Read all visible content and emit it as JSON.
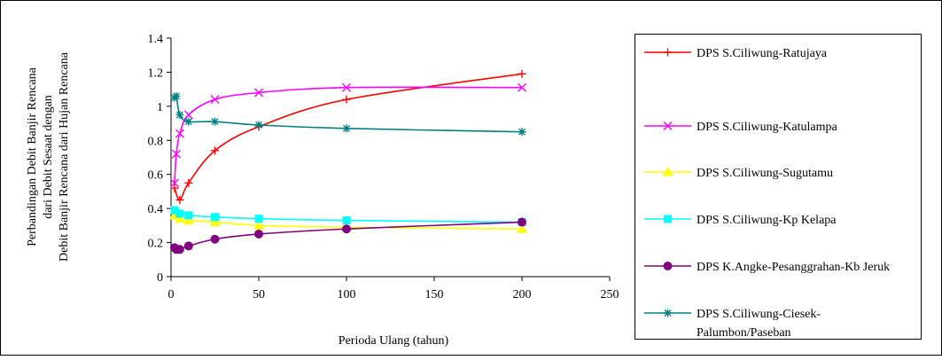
{
  "chart_data": {
    "type": "line",
    "xlabel": "Perioda Ulang (tahun)",
    "ylabel_lines": [
      "Perbandingan Debit Banjir Rencana",
      "dari Debit Sesaat dengan",
      "Debit Banjir Rencana dari Hujan Rencana"
    ],
    "xlim": [
      0,
      250
    ],
    "ylim": [
      0,
      1.4
    ],
    "xticks": [
      "0",
      "50",
      "100",
      "150",
      "200",
      "250"
    ],
    "yticks": [
      "0",
      "0.2",
      "0.4",
      "0.6",
      "0.8",
      "1",
      "1.2",
      "1.4"
    ],
    "grid": false,
    "legend_position": "right",
    "series": [
      {
        "name": "DPS S.Ciliwung-Ratujaya",
        "color": "#ff0000",
        "marker": "plus",
        "x": [
          2,
          5,
          10,
          25,
          50,
          100,
          200
        ],
        "y": [
          0.52,
          0.45,
          0.55,
          0.74,
          0.88,
          1.04,
          1.19
        ]
      },
      {
        "name": "DPS S.Ciliwung-Katulampa",
        "color": "#ff00ff",
        "marker": "x",
        "x": [
          2,
          3,
          5,
          10,
          25,
          50,
          100,
          200
        ],
        "y": [
          0.55,
          0.72,
          0.84,
          0.95,
          1.04,
          1.08,
          1.11,
          1.11
        ]
      },
      {
        "name": "DPS S.Ciliwung-Sugutamu",
        "color": "#ffff00",
        "marker": "triangle",
        "x": [
          2,
          5,
          10,
          25,
          50,
          100,
          200
        ],
        "y": [
          0.36,
          0.34,
          0.33,
          0.32,
          0.3,
          0.29,
          0.28
        ]
      },
      {
        "name": "DPS S.Ciliwung-Kp Kelapa",
        "color": "#00ffff",
        "marker": "square",
        "x": [
          2,
          5,
          10,
          25,
          50,
          100,
          200
        ],
        "y": [
          0.39,
          0.37,
          0.36,
          0.35,
          0.34,
          0.33,
          0.32
        ]
      },
      {
        "name": "DPS K.Angke-Pesanggrahan-Kb Jeruk",
        "color": "#800080",
        "marker": "circle",
        "x": [
          2,
          3,
          5,
          10,
          25,
          50,
          100,
          200
        ],
        "y": [
          0.17,
          0.16,
          0.16,
          0.18,
          0.22,
          0.25,
          0.28,
          0.32
        ]
      },
      {
        "name": "DPS S.Ciliwung-Ciesek-Palumbon/Paseban",
        "name_lines": [
          "DPS S.Ciliwung-Ciesek-",
          "Palumbon/Paseban"
        ],
        "color": "#008080",
        "marker": "asterisk",
        "x": [
          2,
          3,
          5,
          10,
          25,
          50,
          100,
          200
        ],
        "y": [
          1.05,
          1.06,
          0.95,
          0.91,
          0.91,
          0.89,
          0.87,
          0.85
        ]
      }
    ]
  }
}
